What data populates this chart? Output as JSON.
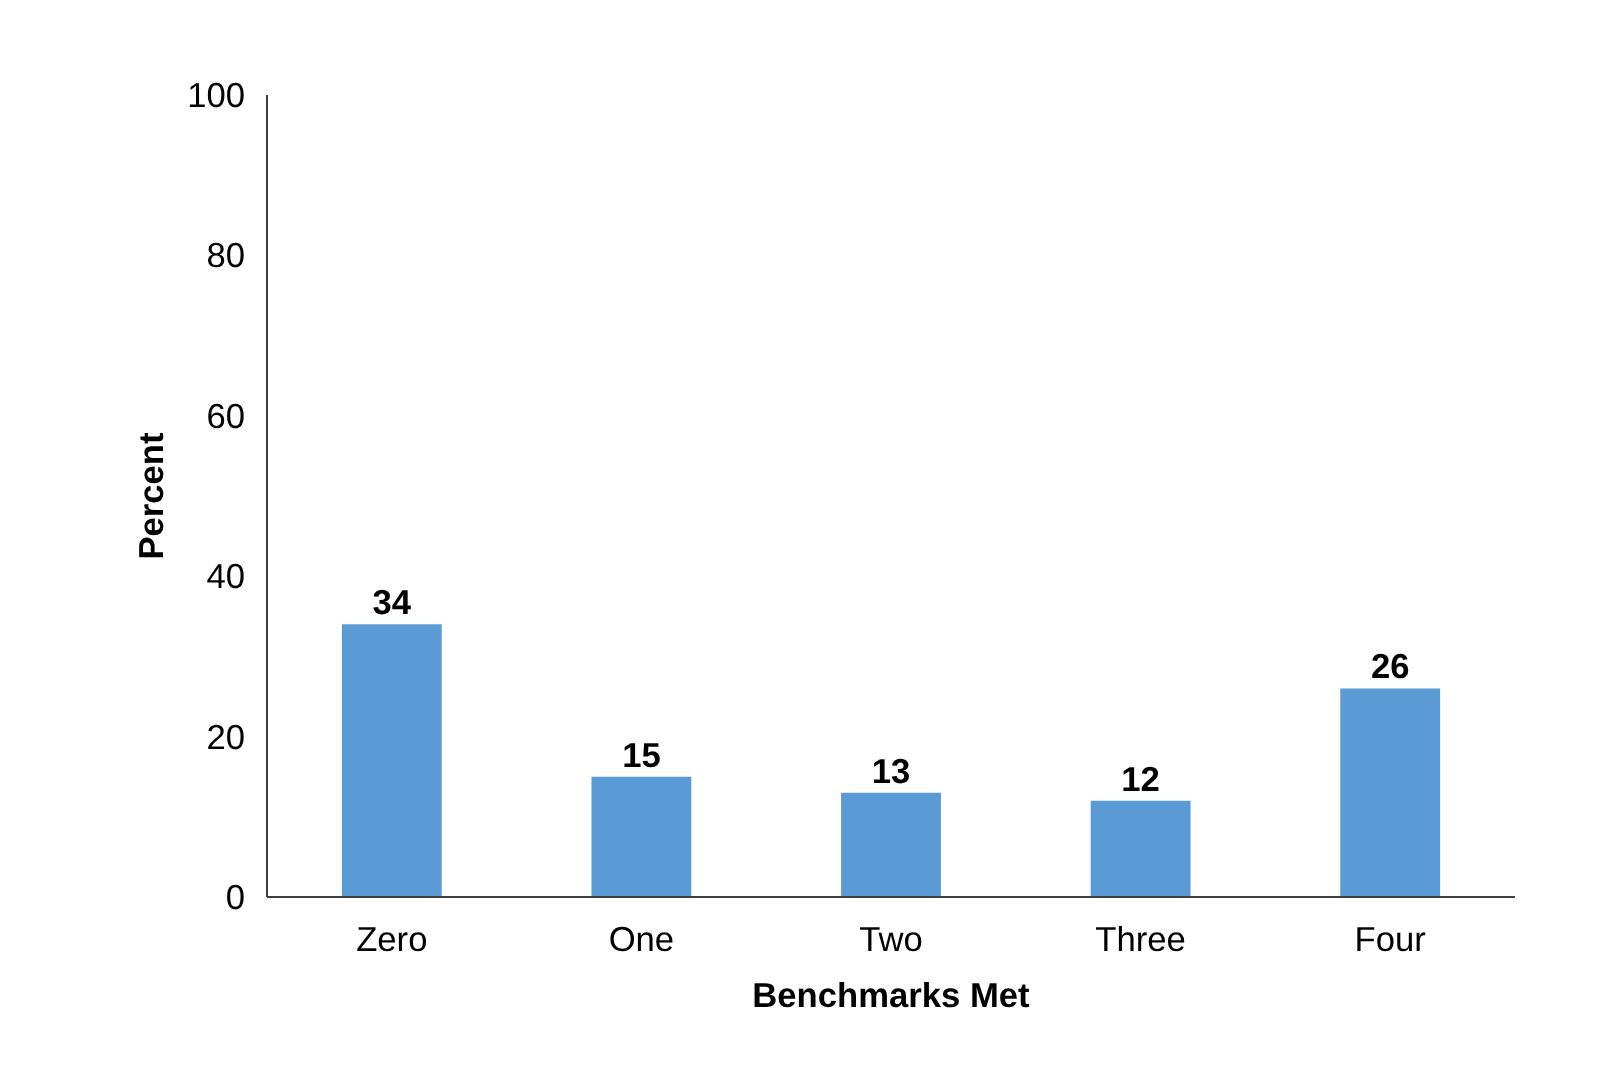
{
  "chart_data": {
    "type": "bar",
    "xlabel": "Benchmarks Met",
    "ylabel": "Percent",
    "categories": [
      "Zero",
      "One",
      "Two",
      "Three",
      "Four"
    ],
    "values": [
      34,
      15,
      13,
      12,
      26
    ],
    "color": "#5b9bd5",
    "ylim": [
      0,
      100
    ],
    "yticks": [
      0,
      20,
      40,
      60,
      80,
      100
    ],
    "grid": false,
    "data_labels": true
  }
}
